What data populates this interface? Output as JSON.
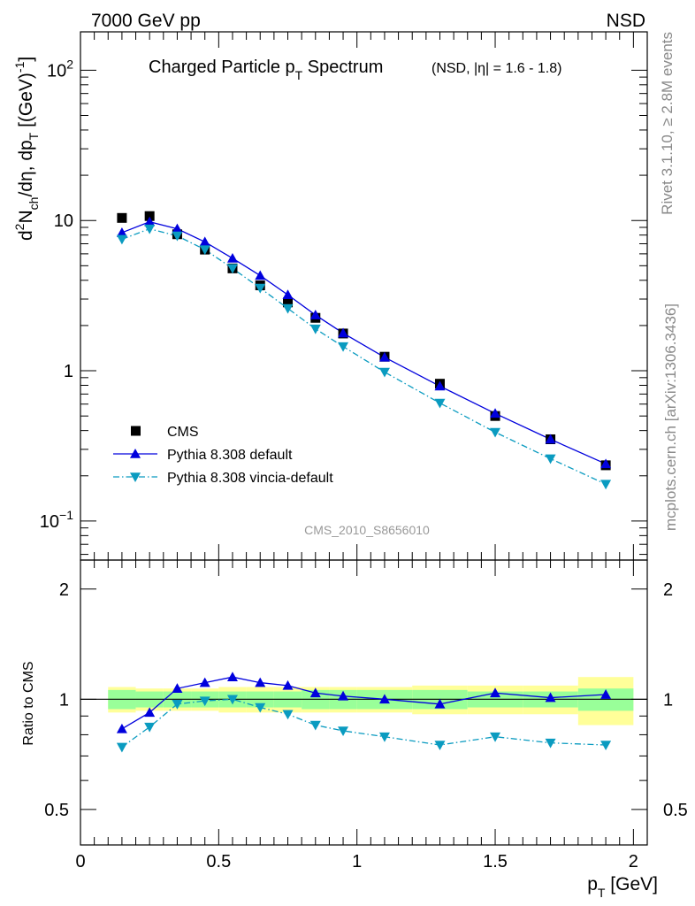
{
  "header": {
    "left": "7000 GeV pp",
    "right": "NSD"
  },
  "side_labels": {
    "rivet": "Rivet 3.1.10, ≥ 2.8M events",
    "mcplots": "mcplots.cern.ch [arXiv:1306.3436]"
  },
  "chart_data": [
    {
      "type": "line",
      "title": "Charged Particle p_T Spectrum",
      "title_main": "Charged Particle p",
      "title_sub": "T",
      "title_tail": " Spectrum",
      "subtitle": "(NSD, |η| = 1.6 - 1.8)",
      "ylabel": "d²N_ch/dη, dp_T [(GeV)⁻¹]",
      "ylabel_parts": [
        "d",
        "2",
        "N",
        "ch",
        "/dη, dp",
        "T",
        " [(GeV)",
        "-1",
        "]"
      ],
      "yscale": "log",
      "ylim": [
        0.055,
        180
      ],
      "xlim": [
        0,
        2.05
      ],
      "analysis_label": "CMS_2010_S8656010",
      "yticks": [
        {
          "v": 0.1,
          "base": "10",
          "exp": "−1"
        },
        {
          "v": 1,
          "base": "1",
          "exp": ""
        },
        {
          "v": 10,
          "base": "10",
          "exp": ""
        },
        {
          "v": 100,
          "base": "10",
          "exp": "2"
        }
      ],
      "legend_position": "lower-left",
      "x": [
        0.15,
        0.25,
        0.35,
        0.45,
        0.55,
        0.65,
        0.75,
        0.85,
        0.95,
        1.1,
        1.3,
        1.5,
        1.7,
        1.9
      ],
      "series": [
        {
          "name": "CMS",
          "style": "data",
          "color": "#000000",
          "values": [
            10.4,
            10.7,
            8.1,
            6.4,
            4.8,
            3.7,
            2.85,
            2.25,
            1.77,
            1.24,
            0.82,
            0.5,
            0.35,
            0.235
          ]
        },
        {
          "name": "Pythia 8.308 default",
          "style": "solid-triangle-up",
          "color": "#0000dd",
          "values": [
            8.3,
            9.8,
            8.8,
            7.2,
            5.6,
            4.3,
            3.2,
            2.35,
            1.78,
            1.23,
            0.79,
            0.52,
            0.35,
            0.24
          ]
        },
        {
          "name": "Pythia 8.308 vincia-default",
          "style": "dashdot-triangle-down",
          "color": "#0a9bc0",
          "values": [
            7.5,
            8.8,
            7.9,
            6.4,
            4.8,
            3.55,
            2.6,
            1.9,
            1.45,
            0.98,
            0.61,
            0.39,
            0.26,
            0.176
          ]
        }
      ]
    },
    {
      "type": "line",
      "ylabel": "Ratio to CMS",
      "xlabel": "p_T [GeV]",
      "xlabel_main": "p",
      "xlabel_sub": "T",
      "xlabel_tail": " [GeV]",
      "yscale": "log",
      "ylim": [
        0.4,
        2.4
      ],
      "xlim": [
        0,
        2.05
      ],
      "xticks": [
        "0",
        "0.5",
        "1",
        "1.5",
        "2"
      ],
      "yticks": [
        "0.5",
        "1",
        "2"
      ],
      "bands": {
        "edges": [
          0.1,
          0.2,
          0.3,
          0.4,
          0.5,
          0.6,
          0.7,
          0.8,
          0.9,
          1.0,
          1.2,
          1.4,
          1.6,
          1.8,
          2.0
        ],
        "inner_color": "#99ff99",
        "outer_color": "#ffff99",
        "stat_half": [
          0.06,
          0.05,
          0.05,
          0.05,
          0.05,
          0.05,
          0.05,
          0.06,
          0.06,
          0.06,
          0.06,
          0.05,
          0.05,
          0.07
        ],
        "total_half": [
          0.08,
          0.07,
          0.07,
          0.07,
          0.08,
          0.08,
          0.08,
          0.08,
          0.08,
          0.08,
          0.09,
          0.09,
          0.09,
          0.15
        ]
      },
      "series": [
        {
          "name": "Pythia 8.308 default",
          "color": "#0000dd",
          "values": [
            0.83,
            0.92,
            1.07,
            1.11,
            1.15,
            1.11,
            1.09,
            1.04,
            1.02,
            1.0,
            0.97,
            1.04,
            1.01,
            1.03
          ]
        },
        {
          "name": "Pythia 8.308 vincia-default",
          "color": "#0a9bc0",
          "values": [
            0.74,
            0.84,
            0.97,
            0.99,
            1.0,
            0.95,
            0.91,
            0.85,
            0.82,
            0.79,
            0.75,
            0.79,
            0.76,
            0.75
          ]
        }
      ]
    }
  ]
}
